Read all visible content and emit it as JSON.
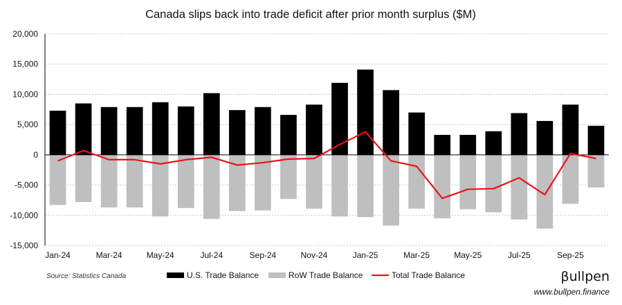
{
  "source_note": "Source: Statistics Canada",
  "brand": {
    "name": "βullpen",
    "url": "www.bullpen.finance"
  },
  "chart_data": {
    "type": "bar",
    "title": "Canada slips back into trade deficit after prior month surplus ($M)",
    "xlabel": "",
    "ylabel": "",
    "ylim": [
      -15000,
      20000
    ],
    "yticks": [
      20000,
      15000,
      10000,
      5000,
      0,
      -5000,
      -10000,
      -15000
    ],
    "ytick_labels": [
      "20,000",
      "15,000",
      "10,000",
      "5,000",
      "0",
      "-5,000",
      "-10,000",
      "-15,000"
    ],
    "grid": "horizontal dotted",
    "legend_position": "bottom",
    "categories": [
      "Jan-24",
      "Feb-24",
      "Mar-24",
      "Apr-24",
      "May-24",
      "Jun-24",
      "Jul-24",
      "Aug-24",
      "Sep-24",
      "Oct-24",
      "Nov-24",
      "Dec-24",
      "Jan-25",
      "Feb-25",
      "Mar-25",
      "Apr-25",
      "May-25",
      "Jun-25",
      "Jul-25",
      "Aug-25",
      "Sep-25",
      "Oct-25"
    ],
    "xtick_labels": [
      "Jan-24",
      "Mar-24",
      "May-24",
      "Jul-24",
      "Sep-24",
      "Nov-24",
      "Jan-25",
      "Mar-25",
      "May-25",
      "Jul-25",
      "Sep-25"
    ],
    "xtick_indices": [
      0,
      2,
      4,
      6,
      8,
      10,
      12,
      14,
      16,
      18,
      20
    ],
    "series": [
      {
        "name": "U.S. Trade Balance",
        "kind": "bar",
        "color": "#000000",
        "values": [
          7300,
          8500,
          7900,
          7900,
          8700,
          8000,
          10200,
          7400,
          7900,
          6600,
          8300,
          11900,
          14100,
          10700,
          7000,
          3300,
          3300,
          3900,
          6900,
          5600,
          8300,
          4800
        ]
      },
      {
        "name": "RoW Trade Balance",
        "kind": "bar",
        "color": "#bfbfbf",
        "values": [
          -8300,
          -7800,
          -8700,
          -8700,
          -10200,
          -8800,
          -10600,
          -9300,
          -9200,
          -7300,
          -8900,
          -10200,
          -10300,
          -11700,
          -8900,
          -10500,
          -9000,
          -9500,
          -10700,
          -12200,
          -8100,
          -5400
        ]
      },
      {
        "name": "Total Trade Balance",
        "kind": "line",
        "color": "#e8141b",
        "values": [
          -1000,
          700,
          -800,
          -800,
          -1500,
          -800,
          -400,
          -1700,
          -1300,
          -700,
          -600,
          1700,
          3800,
          -1000,
          -1900,
          -7200,
          -5700,
          -5600,
          -3800,
          -6600,
          200,
          -600
        ]
      }
    ]
  }
}
